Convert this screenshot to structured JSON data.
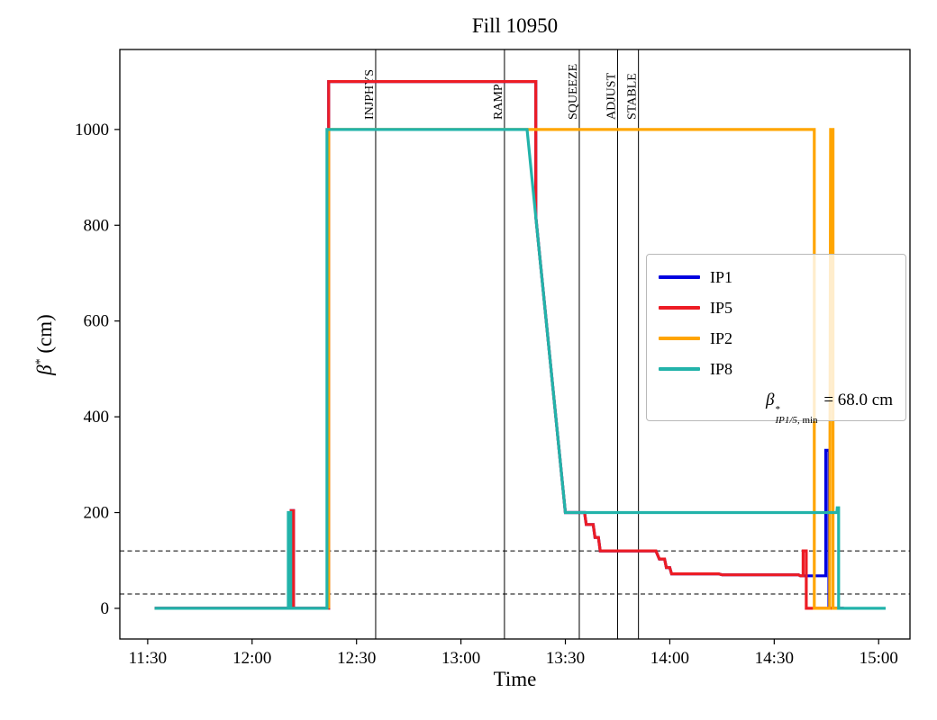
{
  "chart_data": {
    "type": "line",
    "title": "Fill 10950",
    "xlabel": "Time",
    "ylabel": "beta* (cm)",
    "x_unit": "minutes_since_midnight",
    "xlim": [
      682,
      909
    ],
    "ylim": [
      -64,
      1167
    ],
    "grid": false,
    "legend_position": "center-right",
    "xticks": [
      {
        "t": 690,
        "label": "11:30"
      },
      {
        "t": 720,
        "label": "12:00"
      },
      {
        "t": 750,
        "label": "12:30"
      },
      {
        "t": 780,
        "label": "13:00"
      },
      {
        "t": 810,
        "label": "13:30"
      },
      {
        "t": 840,
        "label": "14:00"
      },
      {
        "t": 870,
        "label": "14:30"
      },
      {
        "t": 900,
        "label": "15:00"
      }
    ],
    "yticks": [
      0,
      200,
      400,
      600,
      800,
      1000
    ],
    "threshold_lines_cm": [
      120,
      30
    ],
    "beam_modes": [
      {
        "label": "INJPHYS",
        "t": 755.5
      },
      {
        "label": "RAMP",
        "t": 792.5
      },
      {
        "label": "SQUEEZE",
        "t": 814
      },
      {
        "label": "ADJUST",
        "t": 825
      },
      {
        "label": "STABLE",
        "t": 831
      }
    ],
    "series": [
      {
        "name": "IP1",
        "color": "#0000e0",
        "points": [
          [
            692,
            0
          ],
          [
            730.4,
            0
          ],
          [
            731.2,
            0
          ],
          [
            731.2,
            204
          ],
          [
            731.9,
            204
          ],
          [
            731.9,
            0
          ],
          [
            742,
            0
          ],
          [
            742,
            1100
          ],
          [
            801.5,
            1100
          ],
          [
            801.5,
            818
          ],
          [
            810,
            200
          ],
          [
            815.5,
            200
          ],
          [
            816,
            175
          ],
          [
            818,
            175
          ],
          [
            818.5,
            148
          ],
          [
            819.5,
            148
          ],
          [
            820,
            120
          ],
          [
            836,
            120
          ],
          [
            837,
            103
          ],
          [
            838.5,
            103
          ],
          [
            839,
            85
          ],
          [
            840,
            85
          ],
          [
            840.5,
            72
          ],
          [
            854,
            72
          ],
          [
            855,
            70
          ],
          [
            877,
            70
          ],
          [
            877.5,
            68
          ],
          [
            884.8,
            68
          ],
          [
            884.8,
            330
          ],
          [
            885.7,
            330
          ],
          [
            885.7,
            0
          ],
          [
            890,
            0
          ]
        ]
      },
      {
        "name": "IP5",
        "color": "#ed1c24",
        "points": [
          [
            692,
            0
          ],
          [
            730.4,
            0
          ],
          [
            731.2,
            0
          ],
          [
            731.2,
            204
          ],
          [
            731.9,
            204
          ],
          [
            731.9,
            0
          ],
          [
            742,
            0
          ],
          [
            742,
            1100
          ],
          [
            801.5,
            1100
          ],
          [
            801.5,
            818
          ],
          [
            810,
            200
          ],
          [
            815.5,
            200
          ],
          [
            816,
            175
          ],
          [
            818,
            175
          ],
          [
            818.5,
            148
          ],
          [
            819.5,
            148
          ],
          [
            820,
            120
          ],
          [
            836,
            120
          ],
          [
            837,
            103
          ],
          [
            838.5,
            103
          ],
          [
            839,
            85
          ],
          [
            840,
            85
          ],
          [
            840.5,
            72
          ],
          [
            854,
            72
          ],
          [
            855,
            70
          ],
          [
            877,
            70
          ],
          [
            877.5,
            68
          ],
          [
            878.3,
            68
          ],
          [
            878.3,
            120
          ],
          [
            879.2,
            120
          ],
          [
            879.2,
            0
          ],
          [
            890,
            0
          ]
        ]
      },
      {
        "name": "IP2",
        "color": "#ffa500",
        "points": [
          [
            742,
            0
          ],
          [
            742,
            1000
          ],
          [
            881.5,
            1000
          ],
          [
            881.5,
            0
          ],
          [
            885.9,
            0
          ],
          [
            886.2,
            1000
          ],
          [
            886.9,
            1000
          ],
          [
            886.9,
            0
          ],
          [
            888.5,
            0
          ]
        ]
      },
      {
        "name": "IP8",
        "color": "#22b3aa",
        "points": [
          [
            692,
            0
          ],
          [
            730.4,
            0
          ],
          [
            730.4,
            200
          ],
          [
            731.1,
            200
          ],
          [
            731.1,
            0
          ],
          [
            741.5,
            0
          ],
          [
            741.5,
            1000
          ],
          [
            799,
            1000
          ],
          [
            810,
            200
          ],
          [
            888,
            200
          ],
          [
            888.1,
            210
          ],
          [
            888.5,
            210
          ],
          [
            888.5,
            0
          ],
          [
            902,
            0
          ]
        ]
      }
    ]
  },
  "legend": {
    "entries": [
      {
        "label": "IP1",
        "color": "#0000e0"
      },
      {
        "label": "IP5",
        "color": "#ed1c24"
      },
      {
        "label": "IP2",
        "color": "#ffa500"
      },
      {
        "label": "IP8",
        "color": "#22b3aa"
      }
    ],
    "annotation": {
      "symbol": "β",
      "sup": "*",
      "sub_italic": "IP1/5",
      "sub_roman": ", min",
      "value": " = 68.0 cm"
    }
  },
  "ylabel_parts": {
    "symbol": "β",
    "sup": "*",
    "unit": " (cm)"
  }
}
